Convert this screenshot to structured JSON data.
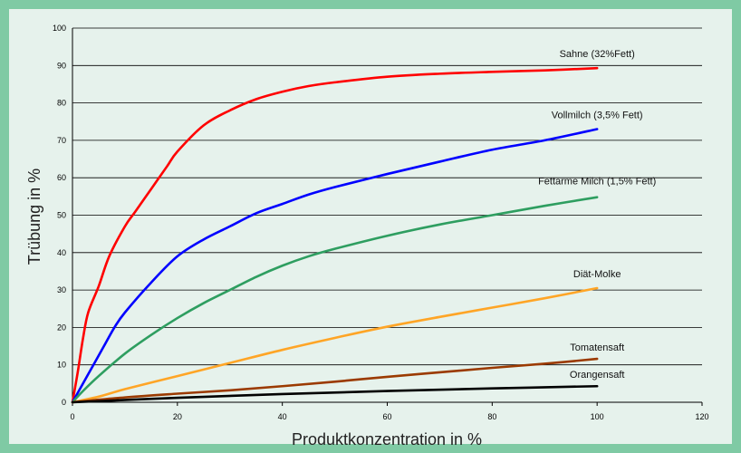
{
  "chart_data": {
    "type": "line",
    "title": "",
    "xlabel": "Produktkonzentration in %",
    "ylabel": "Trübung in %",
    "xlim": [
      0,
      120
    ],
    "ylim": [
      0,
      100
    ],
    "xticks": [
      "0",
      "20",
      "40",
      "60",
      "80",
      "100",
      "120"
    ],
    "yticks": [
      "0",
      "10",
      "20",
      "30",
      "40",
      "50",
      "60",
      "70",
      "80",
      "90",
      "100"
    ],
    "grid": "horizontal",
    "legend": "labels at line ends",
    "series": [
      {
        "name": "Sahne (32%Fett)",
        "color": "#ff0000",
        "x": [
          0,
          1,
          2,
          3,
          5,
          7,
          10,
          12,
          15,
          18,
          20,
          25,
          30,
          35,
          40,
          45,
          50,
          60,
          70,
          80,
          90,
          100
        ],
        "y": [
          0,
          8,
          17,
          24,
          31,
          39,
          47,
          51,
          57,
          63,
          67,
          74,
          78,
          81,
          83,
          84.5,
          85.5,
          87,
          87.8,
          88.3,
          88.7,
          89.3
        ]
      },
      {
        "name": "Vollmilch (3,5% Fett)",
        "color": "#0000ff",
        "x": [
          0,
          2,
          4,
          6,
          8,
          10,
          15,
          20,
          25,
          30,
          35,
          40,
          45,
          50,
          60,
          70,
          80,
          90,
          100
        ],
        "y": [
          0,
          5,
          10,
          15,
          20,
          24,
          32,
          39,
          43.5,
          47,
          50.5,
          53,
          55.5,
          57.5,
          61,
          64.3,
          67.5,
          70,
          73
        ]
      },
      {
        "name": "Fettarme Milch (1,5% Fett)",
        "color": "#2e9e60",
        "x": [
          0,
          2,
          5,
          10,
          15,
          20,
          25,
          30,
          35,
          40,
          45,
          50,
          60,
          70,
          80,
          90,
          100
        ],
        "y": [
          0,
          3,
          7,
          13,
          18,
          22.5,
          26.5,
          30,
          33.5,
          36.5,
          39,
          41,
          44.5,
          47.5,
          50,
          52.5,
          54.8
        ]
      },
      {
        "name": "Diät-Molke",
        "color": "#ffa526",
        "x": [
          0,
          5,
          10,
          20,
          30,
          40,
          50,
          60,
          70,
          80,
          90,
          100
        ],
        "y": [
          0,
          1.5,
          3.5,
          7,
          10.5,
          14,
          17.2,
          20.2,
          22.8,
          25.3,
          27.8,
          30.5
        ]
      },
      {
        "name": "Tomatensaft",
        "color": "#9b3a00",
        "x": [
          0,
          10,
          20,
          30,
          40,
          50,
          60,
          70,
          80,
          90,
          100
        ],
        "y": [
          0,
          1.3,
          2.3,
          3.2,
          4.3,
          5.5,
          6.8,
          8,
          9.2,
          10.3,
          11.6
        ]
      },
      {
        "name": "Orangensaft",
        "color": "#000000",
        "x": [
          0,
          20,
          40,
          60,
          80,
          100
        ],
        "y": [
          0,
          1.2,
          2.2,
          3.0,
          3.7,
          4.3
        ]
      }
    ]
  }
}
